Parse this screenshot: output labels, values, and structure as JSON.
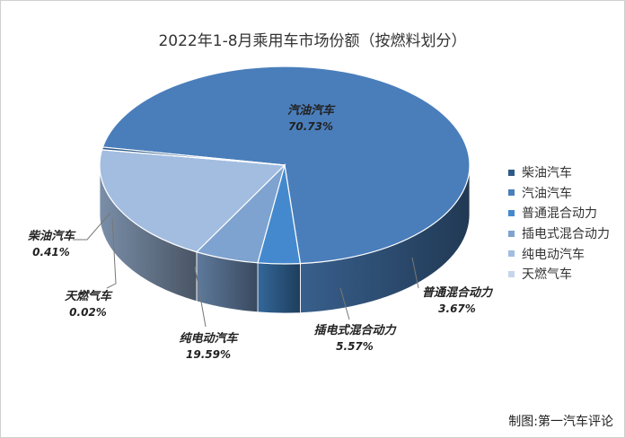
{
  "chart_data": {
    "type": "pie",
    "title": "2022年1-8月乘用车市场份额（按燃料划分）",
    "categories": [
      "柴油汽车",
      "汽油汽车",
      "普通混合动力",
      "插电式混合动力",
      "纯电动汽车",
      "天燃气车"
    ],
    "values": [
      0.41,
      70.73,
      3.67,
      5.57,
      19.59,
      0.02
    ],
    "value_labels": [
      "0.41%",
      "70.73%",
      "3.67%",
      "5.57%",
      "19.59%",
      "0.02%"
    ],
    "legend_position": "right",
    "style": "3d"
  },
  "colors": {
    "柴油汽车": "#2d5a87",
    "汽油汽车": "#4a7ebb",
    "普通混合动力": "#4489cd",
    "插电式混合动力": "#7ea3d0",
    "纯电动汽车": "#a2bde0",
    "天燃气车": "#c5d5ea"
  },
  "source": "制图:第一汽车评论"
}
